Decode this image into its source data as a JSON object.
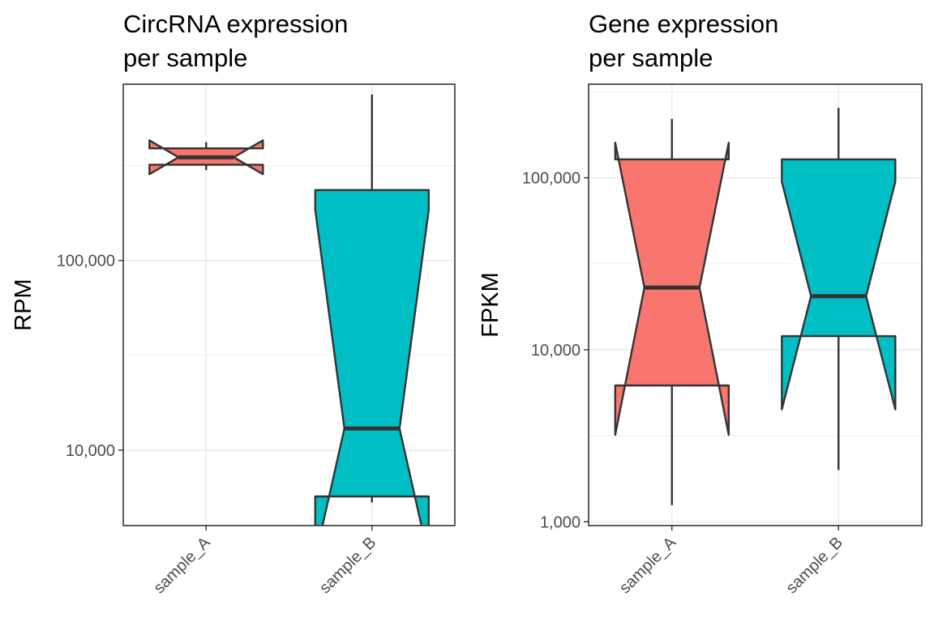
{
  "chart_data": [
    {
      "type": "boxplot",
      "title_lines": [
        "CircRNA expression",
        "per sample"
      ],
      "xlabel": "",
      "ylabel": "RPM",
      "y_scale": "log10",
      "ylim": [
        4000,
        850000
      ],
      "y_ticks": [
        10000,
        100000
      ],
      "y_tick_labels": [
        "10,000",
        "100,000"
      ],
      "grid": true,
      "legend": "none",
      "categories": [
        "sample_A",
        "sample_B"
      ],
      "boxes": [
        {
          "name": "sample_A",
          "color": "#F8766D",
          "whisker_low": 300000,
          "q1": 320000,
          "median": 350000,
          "q3": 390000,
          "whisker_high": 420000,
          "notch_low": 285000,
          "notch_high": 430000
        },
        {
          "name": "sample_B",
          "color": "#00BFC4",
          "whisker_low": 5300,
          "q1": 5700,
          "median": 13000,
          "q3": 235000,
          "whisker_high": 750000,
          "notch_low": 2700,
          "notch_high": 185000
        }
      ]
    },
    {
      "type": "boxplot",
      "title_lines": [
        "Gene expression",
        "per sample"
      ],
      "xlabel": "",
      "ylabel": "FPKM",
      "y_scale": "log10",
      "ylim": [
        950,
        350000
      ],
      "y_ticks": [
        1000,
        10000,
        100000
      ],
      "y_tick_labels": [
        "1,000",
        "10,000",
        "100,000"
      ],
      "grid": true,
      "legend": "none",
      "categories": [
        "sample_A",
        "sample_B"
      ],
      "boxes": [
        {
          "name": "sample_A",
          "color": "#F8766D",
          "whisker_low": 1250,
          "q1": 6200,
          "median": 23000,
          "q3": 128000,
          "whisker_high": 220000,
          "notch_low": 3200,
          "notch_high": 160000
        },
        {
          "name": "sample_B",
          "color": "#00BFC4",
          "whisker_low": 2000,
          "q1": 12000,
          "median": 20500,
          "q3": 128000,
          "whisker_high": 255000,
          "notch_low": 4500,
          "notch_high": 95000
        }
      ]
    }
  ]
}
